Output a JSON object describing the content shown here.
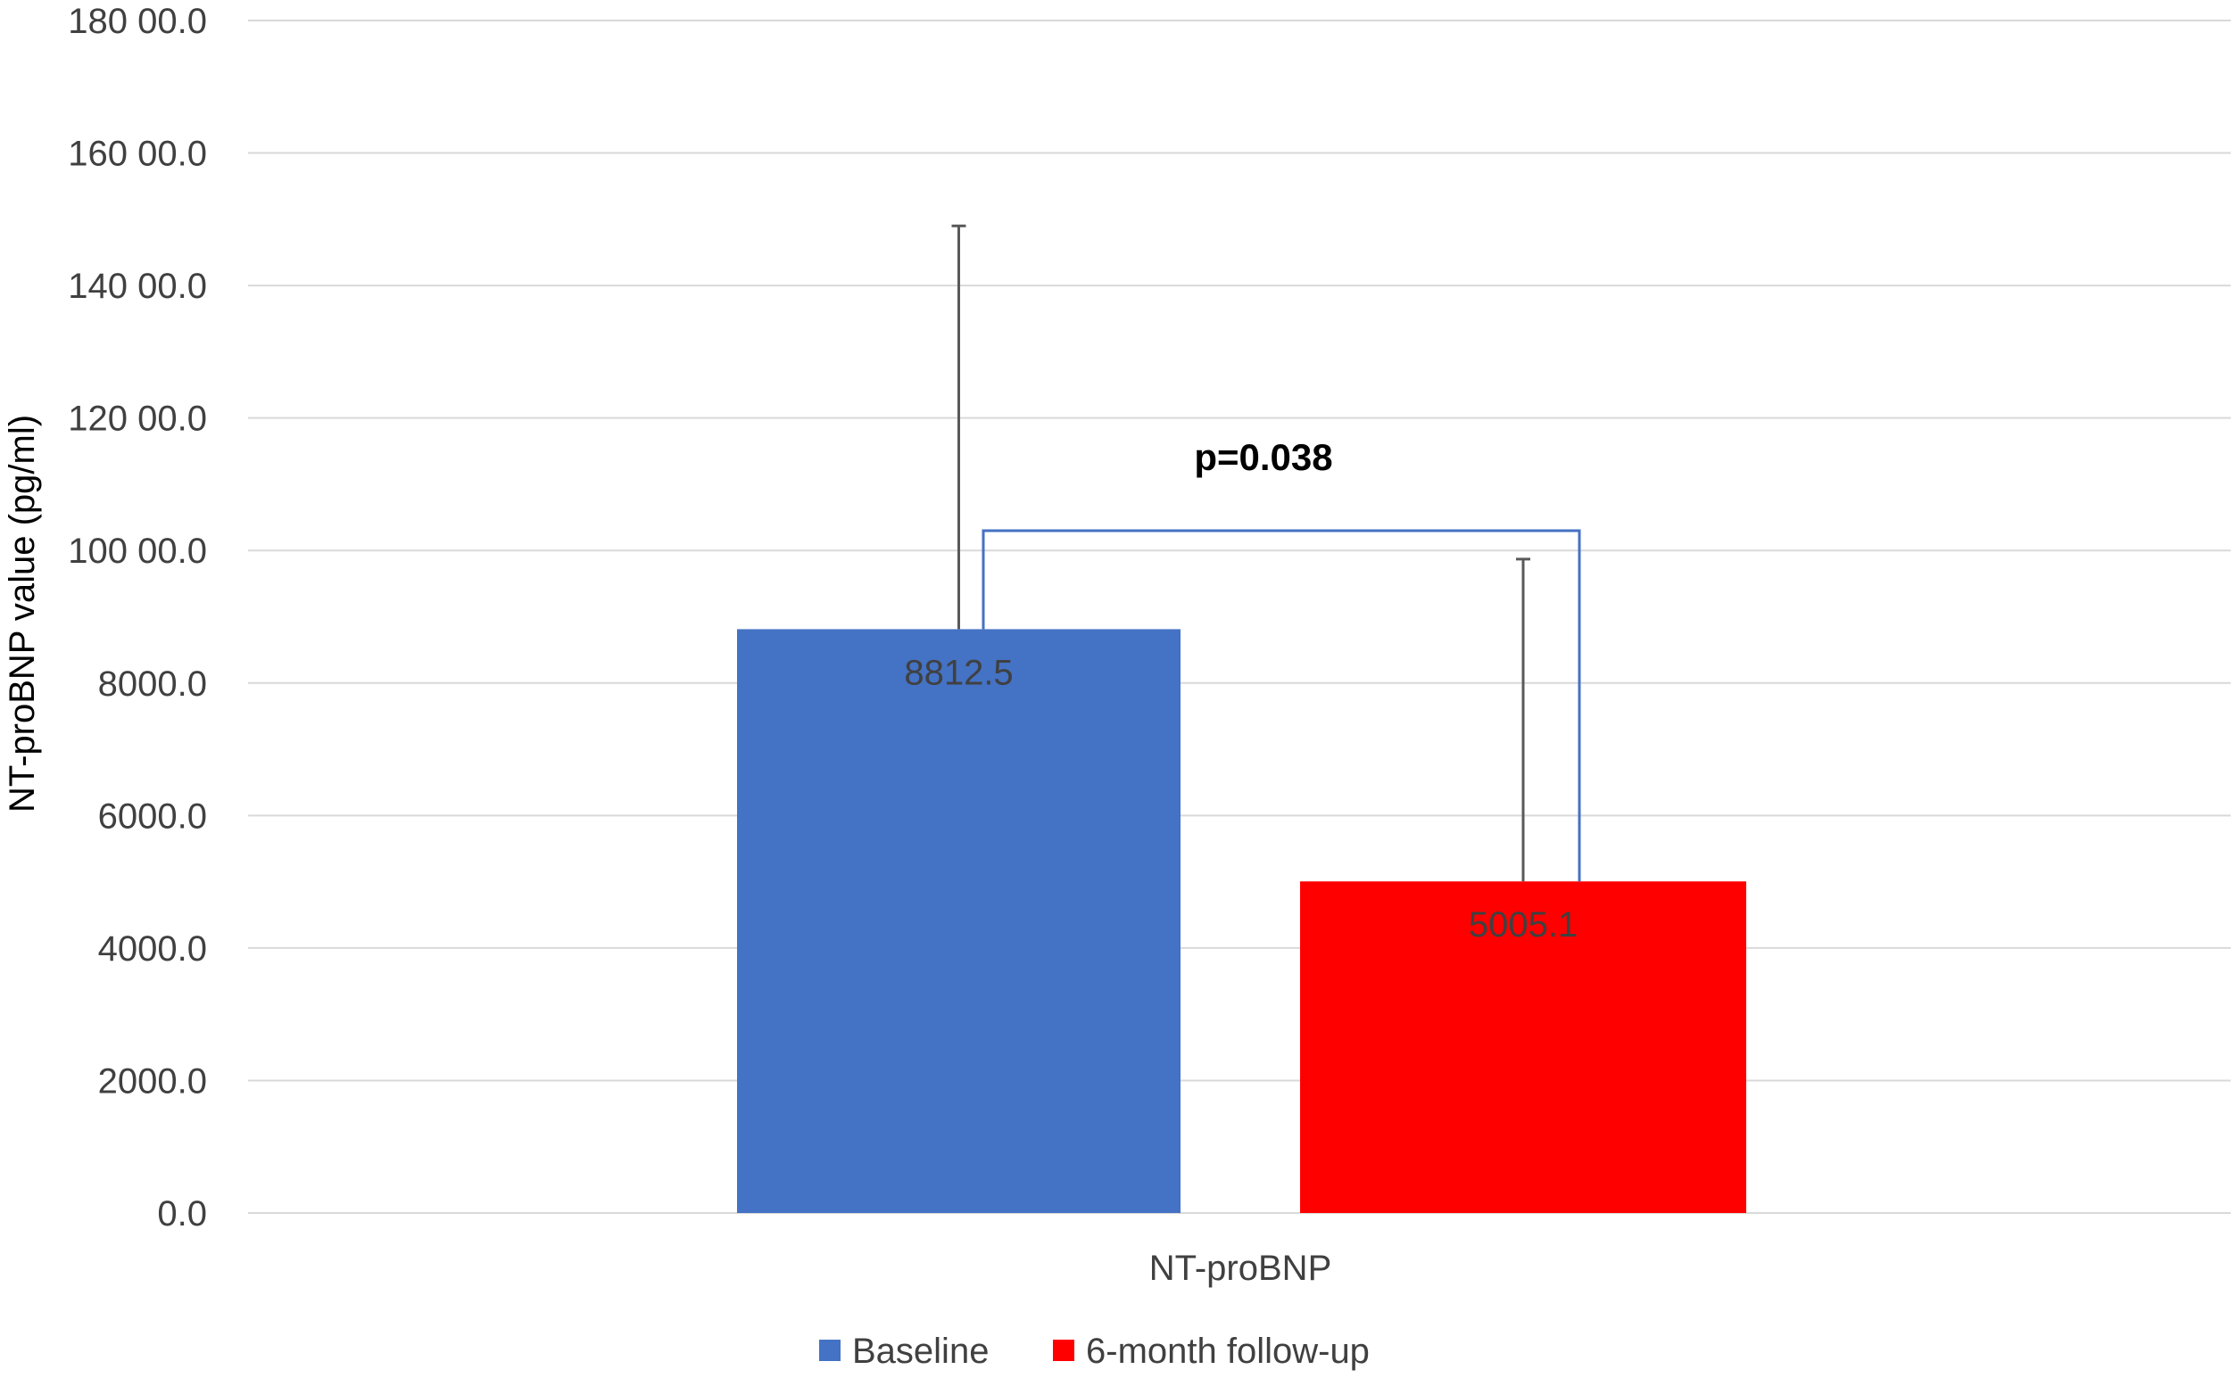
{
  "chart_data": {
    "type": "bar",
    "ylabel": "NT-proBNP value (pg/ml)",
    "ylim": [
      0,
      18000
    ],
    "y_ticks": [
      0,
      2000,
      4000,
      6000,
      8000,
      10000,
      12000,
      14000,
      16000,
      18000
    ],
    "y_tick_labels": [
      "0.0",
      "2000.0",
      "4000.0",
      "6000.0",
      "8000.0",
      "100 00.0",
      "120 00.0",
      "140 00.0",
      "160 00.0",
      "180 00.0"
    ],
    "categories": [
      "NT-proBNP"
    ],
    "grid": true,
    "legend_position": "bottom",
    "series": [
      {
        "name": "Baseline",
        "values": [
          8812.5
        ],
        "value_label": "8812.5",
        "error_upper": [
          14900
        ],
        "color": "#4472C4"
      },
      {
        "name": "6-month follow-up",
        "values": [
          5005.1
        ],
        "value_label": "5005.1",
        "error_upper": [
          9870
        ],
        "color": "#FF0000"
      }
    ],
    "annotation": {
      "text": "p=0.038",
      "bracket_y": 10300,
      "color": "#4472C4"
    }
  }
}
